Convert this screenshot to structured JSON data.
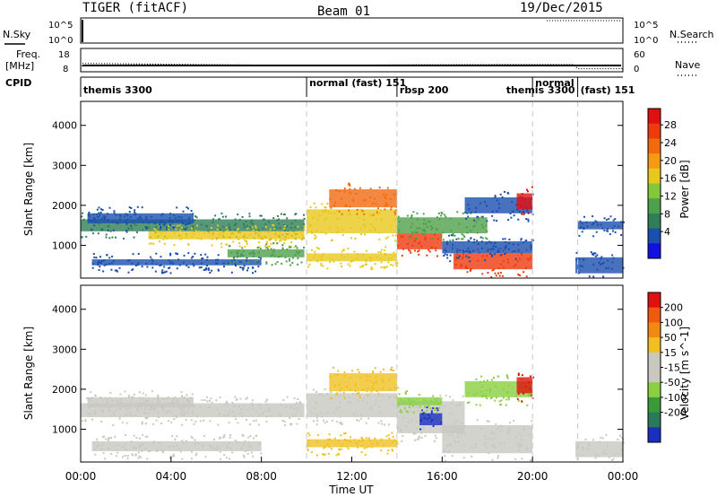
{
  "header": {
    "radar": "TIGER (fitACF)",
    "beam": "Beam 01",
    "date": "19/Dec/2015"
  },
  "chart_data": [
    {
      "type": "line",
      "name": "nsky-nsearch",
      "left_label": "N.Sky",
      "right_label": "N.Search",
      "yticks_left": [
        "10^5",
        "10^0"
      ],
      "yticks_right": [
        "10^5",
        "10^0"
      ]
    },
    {
      "type": "line",
      "name": "freq-nave",
      "left_label_top": "Freq.",
      "left_label_unit": "[MHz]",
      "right_label": "Nave",
      "yticks_left": [
        "18",
        "8"
      ],
      "yticks_right": [
        "60",
        "0"
      ],
      "xlim": [
        0,
        24
      ],
      "nave": {
        "x": [
          0,
          0.1,
          0.25,
          10,
          14,
          20,
          21.8,
          22,
          24
        ],
        "y": [
          6,
          20,
          20,
          14,
          16,
          17,
          17,
          6,
          6
        ]
      }
    },
    {
      "type": "table",
      "name": "cpid",
      "label": "CPID",
      "segments": [
        {
          "start": 0,
          "end": 10,
          "label": "themis 3300"
        },
        {
          "start": 10,
          "end": 14,
          "label": "normal (fast) 151"
        },
        {
          "start": 14,
          "end": 20,
          "label": "rbsp 200"
        },
        {
          "start": 20,
          "end": 22,
          "label": "themis 3300"
        },
        {
          "start": 20,
          "end": 22,
          "label": "normal"
        },
        {
          "start": 22,
          "end": 24,
          "label": "(fast) 151"
        }
      ]
    },
    {
      "type": "heatmap",
      "name": "power",
      "ylabel": "Slant Range [km]",
      "yticks": [
        "1000",
        "2000",
        "3000",
        "4000"
      ],
      "ylim": [
        180,
        4600
      ],
      "xlim": [
        0,
        24
      ],
      "colorbar": {
        "label": "Power [dB]",
        "ticks": [
          "4",
          "8",
          "12",
          "16",
          "20",
          "24",
          "28"
        ],
        "colors": [
          "#1010e0",
          "#1a4fae",
          "#2e7e58",
          "#4fa04c",
          "#82c83a",
          "#e8c81c",
          "#f59a12",
          "#f26a10",
          "#ee3a0c",
          "#e01010"
        ]
      },
      "bands": [
        {
          "t0": 0.0,
          "t1": 9.9,
          "r0": 1350,
          "r1": 1650,
          "c": "#2e7e58"
        },
        {
          "t0": 3.0,
          "t1": 9.9,
          "r0": 1150,
          "r1": 1350,
          "c": "#e8c81c"
        },
        {
          "t0": 0.3,
          "t1": 5.0,
          "r0": 1550,
          "r1": 1800,
          "c": "#1a4fae"
        },
        {
          "t0": 0.5,
          "t1": 8.0,
          "r0": 500,
          "r1": 650,
          "c": "#1a4fae"
        },
        {
          "t0": 6.5,
          "t1": 9.9,
          "r0": 700,
          "r1": 900,
          "c": "#4fa04c"
        },
        {
          "t0": 10.0,
          "t1": 14.0,
          "r0": 1300,
          "r1": 1900,
          "c": "#e8c81c"
        },
        {
          "t0": 11.0,
          "t1": 14.0,
          "r0": 1950,
          "r1": 2400,
          "c": "#f26a10"
        },
        {
          "t0": 10.0,
          "t1": 14.0,
          "r0": 600,
          "r1": 800,
          "c": "#e8c81c"
        },
        {
          "t0": 14.0,
          "t1": 16.0,
          "r0": 900,
          "r1": 1300,
          "c": "#ee3a0c"
        },
        {
          "t0": 14.0,
          "t1": 18.0,
          "r0": 1300,
          "r1": 1700,
          "c": "#4fa04c"
        },
        {
          "t0": 16.5,
          "t1": 20.0,
          "r0": 400,
          "r1": 800,
          "c": "#ee3a0c"
        },
        {
          "t0": 16.0,
          "t1": 20.0,
          "r0": 800,
          "r1": 1100,
          "c": "#1a4fae"
        },
        {
          "t0": 17.0,
          "t1": 20.0,
          "r0": 1800,
          "r1": 2200,
          "c": "#1a4fae"
        },
        {
          "t0": 19.3,
          "t1": 20.0,
          "r0": 1900,
          "r1": 2300,
          "c": "#e01010"
        },
        {
          "t0": 21.9,
          "t1": 24.0,
          "r0": 300,
          "r1": 700,
          "c": "#1a4fae"
        },
        {
          "t0": 22.0,
          "t1": 24.0,
          "r0": 1400,
          "r1": 1600,
          "c": "#1a4fae"
        }
      ]
    },
    {
      "type": "heatmap",
      "name": "velocity",
      "ylabel": "Slant Range [km]",
      "xlabel": "Time UT",
      "xticks": [
        "00:00",
        "04:00",
        "08:00",
        "12:00",
        "16:00",
        "20:00",
        "00:00"
      ],
      "yticks": [
        "1000",
        "2000",
        "3000",
        "4000"
      ],
      "ylim": [
        180,
        4600
      ],
      "xlim": [
        0,
        24
      ],
      "colorbar": {
        "label": "Velocity [m s^-1]",
        "ticks": [
          "200",
          "100",
          "50",
          "15",
          "-15",
          "-50",
          "-100",
          "-200"
        ],
        "colors": [
          "#1a2fc0",
          "#2a7a5a",
          "#3a9a3a",
          "#8ad040",
          "#c8c8c0",
          "#c8c8c0",
          "#f0c020",
          "#f08a10",
          "#f05a10",
          "#e01010"
        ]
      },
      "bands": [
        {
          "t0": 0.0,
          "t1": 9.9,
          "r0": 1300,
          "r1": 1650,
          "c": "#c8c8c0"
        },
        {
          "t0": 0.5,
          "t1": 8.0,
          "r0": 450,
          "r1": 700,
          "c": "#c8c8c0"
        },
        {
          "t0": 0.3,
          "t1": 5.0,
          "r0": 1550,
          "r1": 1800,
          "c": "#c8c8c0"
        },
        {
          "t0": 10.0,
          "t1": 14.0,
          "r0": 1300,
          "r1": 1900,
          "c": "#c8c8c0"
        },
        {
          "t0": 11.0,
          "t1": 14.0,
          "r0": 1950,
          "r1": 2400,
          "c": "#f0c020"
        },
        {
          "t0": 10.0,
          "t1": 14.0,
          "r0": 550,
          "r1": 750,
          "c": "#f0c020"
        },
        {
          "t0": 14.0,
          "t1": 17.0,
          "r0": 900,
          "r1": 1700,
          "c": "#c8c8c0"
        },
        {
          "t0": 15.0,
          "t1": 16.0,
          "r0": 1100,
          "r1": 1400,
          "c": "#1a2fc0"
        },
        {
          "t0": 14.0,
          "t1": 16.0,
          "r0": 1600,
          "r1": 1800,
          "c": "#8ad040"
        },
        {
          "t0": 16.0,
          "t1": 20.0,
          "r0": 400,
          "r1": 1100,
          "c": "#c8c8c0"
        },
        {
          "t0": 17.0,
          "t1": 20.0,
          "r0": 1800,
          "r1": 2200,
          "c": "#8ad040"
        },
        {
          "t0": 19.3,
          "t1": 20.0,
          "r0": 1900,
          "r1": 2300,
          "c": "#e01010"
        },
        {
          "t0": 21.9,
          "t1": 24.0,
          "r0": 300,
          "r1": 700,
          "c": "#c8c8c0"
        }
      ]
    }
  ]
}
